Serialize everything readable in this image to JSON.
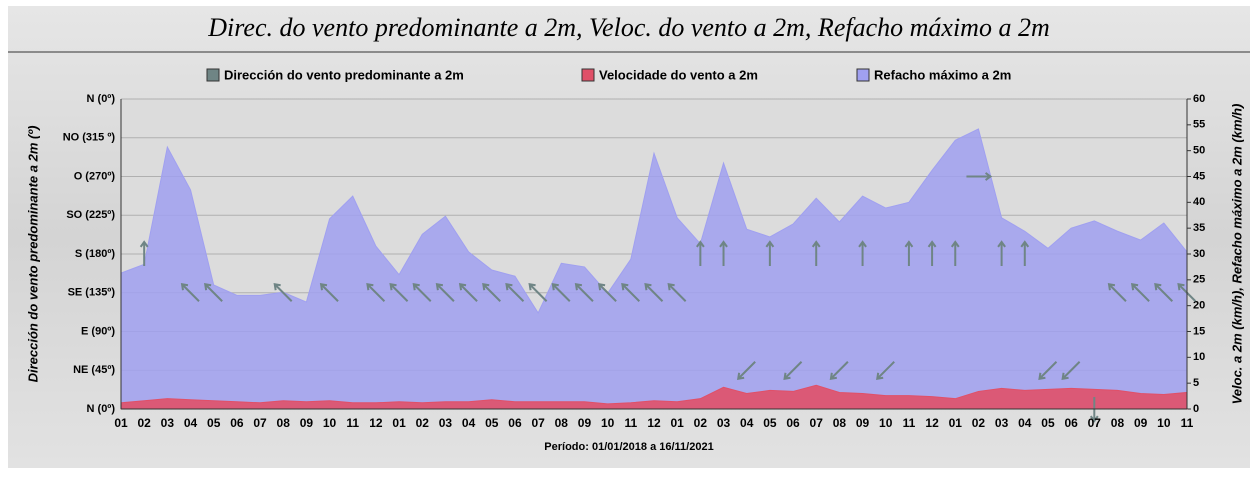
{
  "chart_data": {
    "type": "area",
    "title": "Direc. do vento predominante a 2m, Veloc. do vento a 2m, Refacho máximo a 2m",
    "xlabel": "Período: 01/01/2018 a 16/11/2021",
    "ylabel": "Dirección do vento predominante a 2m (º)",
    "y2label": "Veloc. a 2m (km/h), Refacho máximo a 2m (km/h)",
    "categories": [
      "01",
      "02",
      "03",
      "04",
      "05",
      "06",
      "07",
      "08",
      "09",
      "10",
      "11",
      "12",
      "01",
      "02",
      "03",
      "04",
      "05",
      "06",
      "07",
      "08",
      "09",
      "10",
      "11",
      "12",
      "01",
      "02",
      "03",
      "04",
      "05",
      "06",
      "07",
      "08",
      "09",
      "10",
      "11",
      "12",
      "01",
      "02",
      "03",
      "04",
      "05",
      "06",
      "07",
      "08",
      "09",
      "10",
      "11"
    ],
    "series": [
      {
        "name": "Dirección do vento predominante a 2m",
        "color": "#6f8585",
        "axis": "y",
        "values": [
          null,
          180,
          null,
          135,
          135,
          null,
          null,
          135,
          null,
          135,
          null,
          135,
          135,
          135,
          135,
          135,
          135,
          135,
          135,
          135,
          135,
          135,
          135,
          135,
          135,
          180,
          180,
          45,
          180,
          45,
          180,
          45,
          180,
          45,
          180,
          180,
          180,
          270,
          180,
          180,
          45,
          45,
          0,
          135,
          135,
          135,
          135
        ]
      },
      {
        "name": "Velocidade do vento a 2m",
        "color": "#e05068",
        "axis": "y2",
        "values": [
          1.2,
          1.6,
          2,
          1.8,
          1.6,
          1.4,
          1.2,
          1.6,
          1.4,
          1.6,
          1.2,
          1.2,
          1.4,
          1.2,
          1.4,
          1.4,
          1.8,
          1.4,
          1.4,
          1.4,
          1.4,
          1,
          1.2,
          1.6,
          1.4,
          2,
          4.2,
          3,
          3.6,
          3.4,
          4.6,
          3.2,
          3,
          2.6,
          2.6,
          2.4,
          2,
          3.4,
          4,
          3.6,
          3.8,
          4,
          3.8,
          3.6,
          3,
          2.8,
          3.2
        ]
      },
      {
        "name": "Refacho máximo a 2m",
        "color": "#a0a0f0",
        "axis": "y2",
        "values": [
          26.3,
          28,
          50.7,
          42.4,
          24,
          22,
          22,
          22.6,
          20.7,
          36.8,
          41.2,
          31.5,
          26,
          33.8,
          37.3,
          30.4,
          26.9,
          25.7,
          18.6,
          28.2,
          27.5,
          22.4,
          29,
          49.5,
          37,
          32,
          47.6,
          34.8,
          33.3,
          35.8,
          40.8,
          36.2,
          41.2,
          38.9,
          40,
          46.2,
          52,
          54.2,
          37,
          34.4,
          31.1,
          35,
          36.4,
          34.4,
          32.7,
          36,
          30.4
        ]
      }
    ],
    "ylim": [
      0,
      360
    ],
    "yticks": [
      {
        "value": 0,
        "label": "N (0º)"
      },
      {
        "value": 45,
        "label": "NE (45º)"
      },
      {
        "value": 90,
        "label": "E (90º)"
      },
      {
        "value": 135,
        "label": "SE (135º)"
      },
      {
        "value": 180,
        "label": "S (180º)"
      },
      {
        "value": 225,
        "label": "SO (225º)"
      },
      {
        "value": 270,
        "label": "O (270º)"
      },
      {
        "value": 315,
        "label": "NO (315 º)"
      },
      {
        "value": 360,
        "label": "N (0º)"
      }
    ],
    "y2lim": [
      0,
      60
    ],
    "y2ticks": [
      0,
      5,
      10,
      15,
      20,
      25,
      30,
      35,
      40,
      45,
      50,
      55,
      60
    ],
    "grid": true,
    "legend": "top"
  }
}
